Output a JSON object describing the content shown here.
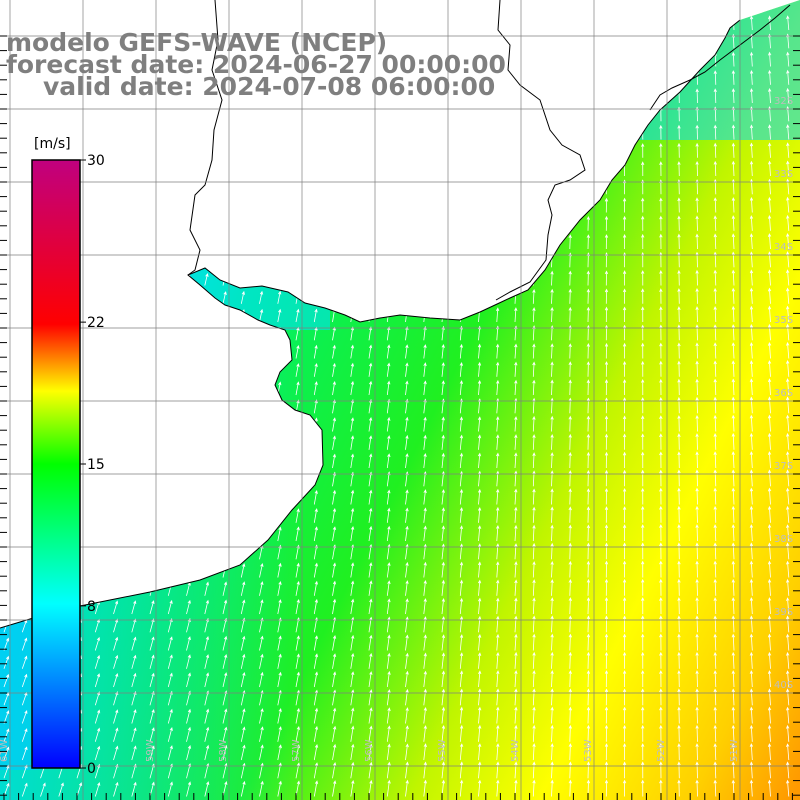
{
  "header": {
    "model_line": "modelo GEFS-WAVE (NCEP)",
    "forecast_line": "forecast date: 2024-06-27 00:00:00",
    "valid_line": "valid date: 2024-07-08 06:00:00"
  },
  "colorbar": {
    "unit": "[m/s]",
    "min": 0,
    "max": 30,
    "tick_labels": [
      "30",
      "22",
      "15",
      "8",
      "0"
    ],
    "tick_values": [
      30,
      22,
      15,
      8,
      0
    ],
    "colors": [
      "#0000ff",
      "#00ffff",
      "#00ff00",
      "#ffff00",
      "#ff0000",
      "#c0007f"
    ]
  },
  "map": {
    "lon_range": [
      -61,
      -50
    ],
    "lat_range": [
      -41,
      -30
    ],
    "lat_labels": [
      "32S",
      "33S",
      "34S",
      "35S",
      "36S",
      "37S",
      "38S",
      "39S",
      "40S"
    ],
    "lon_labels": [
      "61W",
      "60W",
      "59W",
      "58W",
      "57W",
      "56W",
      "55W",
      "54W",
      "53W",
      "52W",
      "51W"
    ],
    "land_color": "#ffffff",
    "grid_color": "#7f7f7f",
    "coast_color": "#000000",
    "wind_direction": "toward north-northeast"
  }
}
